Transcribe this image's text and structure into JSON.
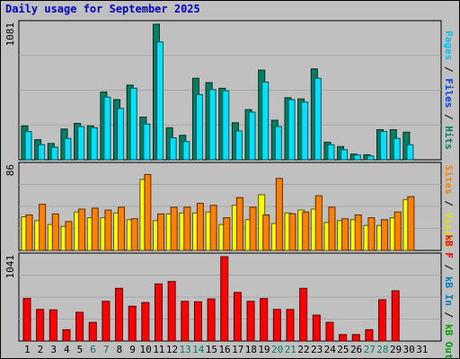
{
  "title": "Daily usage for September 2025",
  "colors": {
    "background": "#c0c0c0",
    "panel": "#c0c0c0",
    "title": "#0000c0",
    "pages": "#00e0ff",
    "files": "#0040ff",
    "hits": "#008060",
    "visits": "#ffff00",
    "sites": "#ff8000",
    "kbf": "#ff0000",
    "kbin": "#0080c0",
    "kbout": "#00a000",
    "weekday_tick": "#000000",
    "weekend_tick": "#008060"
  },
  "right_labels": {
    "top": [
      {
        "text": "Pages",
        "color": "#00c0ff"
      },
      {
        "text": " / ",
        "color": "#000000"
      },
      {
        "text": "Files",
        "color": "#0040ff"
      },
      {
        "text": " / ",
        "color": "#000000"
      },
      {
        "text": "Hits",
        "color": "#008060"
      }
    ],
    "middle": [
      {
        "text": "Sites",
        "color": "#ff8000"
      },
      {
        "text": " / ",
        "color": "#000000"
      },
      {
        "text": "Visits",
        "color": "#e0e000"
      }
    ],
    "bottom": [
      {
        "text": "kB F",
        "color": "#ff0000"
      },
      {
        "text": " / ",
        "color": "#000000"
      },
      {
        "text": "kB In",
        "color": "#0080c0"
      },
      {
        "text": " / ",
        "color": "#000000"
      },
      {
        "text": "kB Out",
        "color": "#00a000"
      }
    ]
  },
  "chart_data": [
    {
      "type": "bar",
      "panel": "hits",
      "ylabel": "1081",
      "ylim": [
        0,
        1081
      ],
      "x": [
        1,
        2,
        3,
        4,
        5,
        6,
        7,
        8,
        9,
        10,
        11,
        12,
        13,
        14,
        15,
        16,
        17,
        18,
        19,
        20,
        21,
        22,
        23,
        24,
        25,
        26,
        27,
        28,
        29,
        30,
        31
      ],
      "series": [
        {
          "name": "Hits",
          "values": [
            270,
            160,
            130,
            245,
            290,
            270,
            540,
            480,
            595,
            340,
            1081,
            255,
            195,
            650,
            615,
            570,
            295,
            400,
            715,
            315,
            495,
            485,
            725,
            140,
            105,
            45,
            40,
            240,
            240,
            220,
            null
          ]
        },
        {
          "name": "Files",
          "values": [
            270,
            160,
            130,
            245,
            290,
            270,
            540,
            480,
            595,
            340,
            1081,
            255,
            195,
            650,
            615,
            570,
            295,
            400,
            715,
            315,
            495,
            485,
            725,
            140,
            105,
            45,
            40,
            240,
            240,
            220,
            null
          ]
        },
        {
          "name": "Pages",
          "values": [
            225,
            120,
            100,
            170,
            265,
            255,
            500,
            410,
            570,
            285,
            940,
            175,
            145,
            520,
            560,
            550,
            230,
            380,
            620,
            265,
            480,
            460,
            650,
            120,
            80,
            38,
            30,
            225,
            170,
            120,
            null
          ]
        }
      ]
    },
    {
      "type": "bar",
      "panel": "visits",
      "ylabel": "86",
      "ylim": [
        0,
        86
      ],
      "x": [
        1,
        2,
        3,
        4,
        5,
        6,
        7,
        8,
        9,
        10,
        11,
        12,
        13,
        14,
        15,
        16,
        17,
        18,
        19,
        20,
        21,
        22,
        23,
        24,
        25,
        26,
        27,
        28,
        29,
        30,
        31
      ],
      "series": [
        {
          "name": "Visits",
          "values": [
            35,
            31,
            27,
            25,
            40,
            34,
            34,
            39,
            32,
            74,
            31,
            38,
            39,
            39,
            40,
            27,
            47,
            32,
            58,
            28,
            39,
            42,
            43,
            29,
            31,
            32,
            26,
            26,
            34,
            53,
            null
          ]
        },
        {
          "name": "Sites",
          "values": [
            37,
            48,
            38,
            30,
            43,
            44,
            42,
            45,
            33,
            79,
            38,
            45,
            45,
            49,
            47,
            34,
            55,
            45,
            37,
            75,
            38,
            40,
            57,
            45,
            33,
            37,
            34,
            32,
            40,
            56,
            null
          ]
        }
      ]
    },
    {
      "type": "bar",
      "panel": "kbytes",
      "ylabel": "1041",
      "ylim": [
        0,
        1041
      ],
      "x": [
        1,
        2,
        3,
        4,
        5,
        6,
        7,
        8,
        9,
        10,
        11,
        12,
        13,
        14,
        15,
        16,
        17,
        18,
        19,
        20,
        21,
        22,
        23,
        24,
        25,
        26,
        27,
        28,
        29,
        30,
        31
      ],
      "series": [
        {
          "name": "kB F",
          "values": [
            525,
            390,
            385,
            140,
            355,
            230,
            490,
            650,
            430,
            475,
            705,
            735,
            490,
            485,
            520,
            1041,
            600,
            490,
            525,
            390,
            390,
            650,
            320,
            230,
            80,
            80,
            140,
            510,
            620,
            null,
            null
          ]
        }
      ]
    }
  ],
  "x_ticks": [
    {
      "label": "1",
      "weekend": false
    },
    {
      "label": "2",
      "weekend": false
    },
    {
      "label": "3",
      "weekend": false
    },
    {
      "label": "4",
      "weekend": false
    },
    {
      "label": "5",
      "weekend": false
    },
    {
      "label": "6",
      "weekend": true
    },
    {
      "label": "7",
      "weekend": true
    },
    {
      "label": "8",
      "weekend": false
    },
    {
      "label": "9",
      "weekend": false
    },
    {
      "label": "10",
      "weekend": false
    },
    {
      "label": "11",
      "weekend": false
    },
    {
      "label": "12",
      "weekend": false
    },
    {
      "label": "13",
      "weekend": true
    },
    {
      "label": "14",
      "weekend": true
    },
    {
      "label": "15",
      "weekend": false
    },
    {
      "label": "16",
      "weekend": false
    },
    {
      "label": "17",
      "weekend": false
    },
    {
      "label": "18",
      "weekend": false
    },
    {
      "label": "19",
      "weekend": false
    },
    {
      "label": "20",
      "weekend": true
    },
    {
      "label": "21",
      "weekend": true
    },
    {
      "label": "22",
      "weekend": false
    },
    {
      "label": "23",
      "weekend": false
    },
    {
      "label": "24",
      "weekend": false
    },
    {
      "label": "25",
      "weekend": false
    },
    {
      "label": "26",
      "weekend": false
    },
    {
      "label": "27",
      "weekend": true
    },
    {
      "label": "28",
      "weekend": true
    },
    {
      "label": "29",
      "weekend": false
    },
    {
      "label": "30",
      "weekend": false
    },
    {
      "label": "31",
      "weekend": false
    }
  ]
}
